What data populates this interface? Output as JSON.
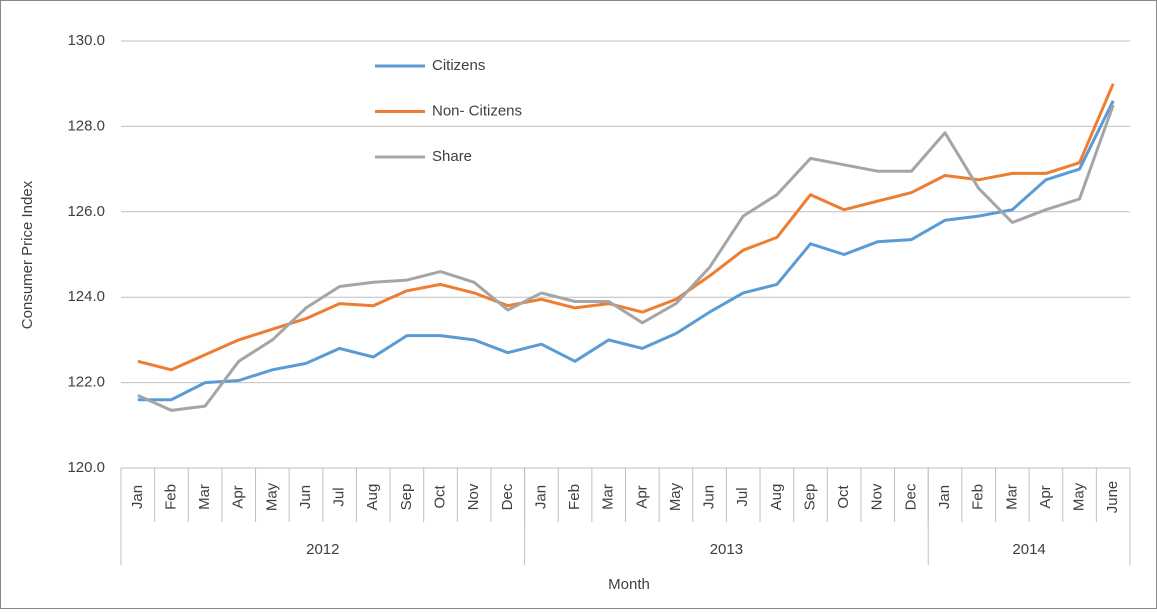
{
  "chart_data": {
    "type": "line",
    "x_label": "Month",
    "y_label": "Consumer Price Index",
    "groups": [
      {
        "name": "2012",
        "categories": [
          "Jan",
          "Feb",
          "Mar",
          "Apr",
          "May",
          "Jun",
          "Jul",
          "Aug",
          "Sep",
          "Oct",
          "Nov",
          "Dec"
        ]
      },
      {
        "name": "2013",
        "categories": [
          "Jan",
          "Feb",
          "Mar",
          "Apr",
          "May",
          "Jun",
          "Jul",
          "Aug",
          "Sep",
          "Oct",
          "Nov",
          "Dec"
        ]
      },
      {
        "name": "2014",
        "categories": [
          "Jan",
          "Feb",
          "Mar",
          "Apr",
          "May",
          "June"
        ]
      }
    ],
    "series": [
      {
        "name": "Citizens",
        "color": "#5b9bd5",
        "values": [
          121.6,
          121.6,
          122.0,
          122.05,
          122.3,
          122.45,
          122.8,
          122.6,
          123.1,
          123.1,
          123.0,
          122.7,
          122.9,
          122.5,
          123.0,
          122.8,
          123.15,
          123.65,
          124.1,
          124.3,
          125.25,
          125.0,
          125.3,
          125.35,
          125.8,
          125.9,
          126.05,
          126.75,
          127.0,
          128.6
        ]
      },
      {
        "name": "Non- Citizens",
        "color": "#ed7d31",
        "values": [
          122.5,
          122.3,
          122.65,
          123.0,
          123.25,
          123.5,
          123.85,
          123.8,
          124.15,
          124.3,
          124.1,
          123.8,
          123.95,
          123.75,
          123.85,
          123.65,
          123.95,
          124.5,
          125.1,
          125.4,
          126.4,
          126.05,
          126.25,
          126.45,
          126.85,
          126.75,
          126.9,
          126.9,
          127.15,
          129.0
        ]
      },
      {
        "name": "Share",
        "color": "#a5a5a5",
        "values": [
          121.7,
          121.35,
          121.45,
          122.5,
          123.0,
          123.75,
          124.25,
          124.35,
          124.4,
          124.6,
          124.35,
          123.7,
          124.1,
          123.9,
          123.9,
          123.4,
          123.85,
          124.7,
          125.9,
          126.4,
          127.25,
          127.1,
          126.95,
          126.95,
          127.85,
          126.55,
          125.75,
          126.05,
          126.3,
          128.5
        ]
      }
    ],
    "ylim": [
      120,
      130
    ],
    "yticks": [
      {
        "value": 120,
        "label": "120.0"
      },
      {
        "value": 122,
        "label": "122.0"
      },
      {
        "value": 124,
        "label": "124.0"
      },
      {
        "value": 126,
        "label": "126.0"
      },
      {
        "value": 128,
        "label": "128.0"
      },
      {
        "value": 130,
        "label": "130.0"
      }
    ],
    "grid": true,
    "legend": "top-left"
  }
}
